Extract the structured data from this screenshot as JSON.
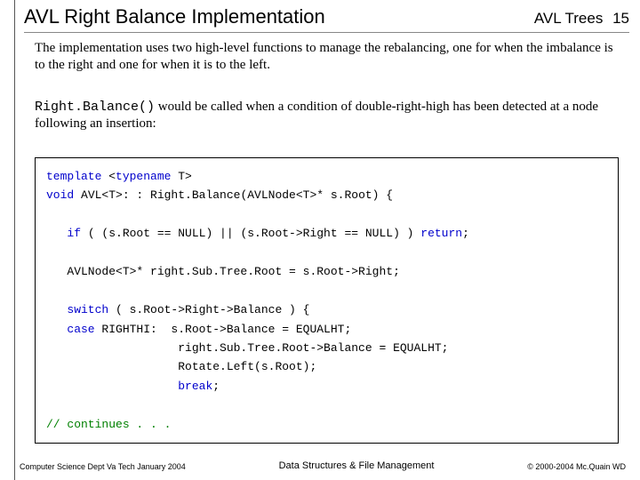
{
  "header": {
    "title": "AVL Right Balance Implementation",
    "topic": "AVL Trees",
    "page_num": "15"
  },
  "body": {
    "para1": "The implementation uses two high-level functions to manage the rebalancing, one for when the imbalance is to the right and one for when it is to the left.",
    "fn_name": "Right.Balance()",
    "para2_rest": " would be called when a condition of double-right-high has been detected at a node following an insertion:"
  },
  "code": {
    "l1a": "template",
    "l1b": " <",
    "l1c": "typename",
    "l1d": " T>",
    "l2a": "void",
    "l2b": " AVL<T>: : Right.Balance(AVLNode<T>* s.Root) {",
    "l3a": "   if",
    "l3b": " ( (s.Root == NULL) || (s.Root->Right == NULL) ) ",
    "l3c": "return",
    "l3d": ";",
    "l4": "   AVLNode<T>* right.Sub.Tree.Root = s.Root->Right;",
    "l5a": "   switch",
    "l5b": " ( s.Root->Right->Balance ) {",
    "l6a": "   case",
    "l6b": " RIGHTHI:  s.Root->Balance = EQUALHT;",
    "l7": "                   right.Sub.Tree.Root->Balance = EQUALHT;",
    "l8": "                   Rotate.Left(s.Root);",
    "l9a": "                   ",
    "l9b": "break",
    "l9c": ";",
    "l10": "// continues . . ."
  },
  "footer": {
    "left": "Computer Science Dept Va Tech January 2004",
    "center": "Data Structures & File Management",
    "right": "© 2000-2004 Mc.Quain WD"
  },
  "colors": {
    "keyword_blue": "#0000cc",
    "keyword_green": "#008000",
    "border": "#000000",
    "rule": "#888888",
    "background": "#ffffff"
  },
  "fonts": {
    "title_family": "Arial",
    "title_size_pt": 17,
    "body_family": "Times New Roman",
    "body_size_pt": 12,
    "code_family": "Courier New",
    "code_size_pt": 10,
    "footer_size_pt": 7
  }
}
